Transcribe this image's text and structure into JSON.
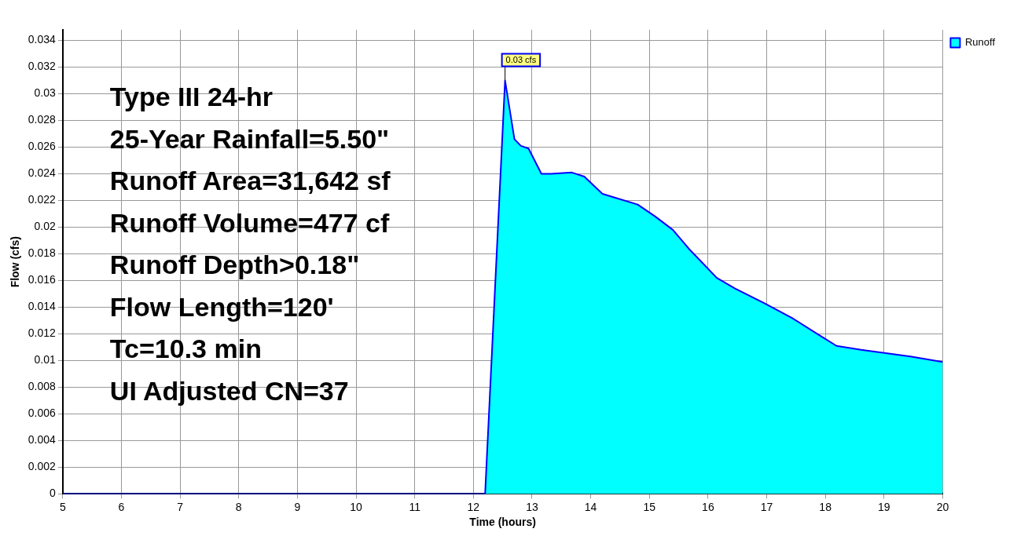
{
  "chart_data": {
    "type": "area",
    "xlabel": "Time (hours)",
    "ylabel": "Flow (cfs)",
    "x": [
      5,
      12.2,
      12.54,
      12.7,
      12.81,
      12.94,
      13.16,
      13.32,
      13.68,
      13.89,
      14.2,
      14.8,
      15.1,
      15.4,
      15.67,
      16.15,
      16.46,
      16.96,
      17.43,
      17.86,
      18.19,
      18.61,
      19.45,
      20.0
    ],
    "series": [
      {
        "name": "Runoff",
        "color": "#00ffff",
        "values": [
          0,
          0,
          0.031,
          0.0266,
          0.0261,
          0.0259,
          0.024,
          0.024,
          0.0241,
          0.0238,
          0.0225,
          0.0217,
          0.0208,
          0.0198,
          0.0184,
          0.0162,
          0.0154,
          0.0143,
          0.0132,
          0.012,
          0.0111,
          0.0108,
          0.0103,
          0.0099
        ]
      }
    ],
    "xlim": [
      5,
      20
    ],
    "xticks": [
      5,
      6,
      7,
      8,
      9,
      10,
      11,
      12,
      13,
      14,
      15,
      16,
      17,
      18,
      19,
      20
    ],
    "ylim": [
      0,
      0.0348
    ],
    "yticks": [
      0,
      0.002,
      0.004,
      0.006,
      0.008,
      0.01,
      0.012,
      0.014,
      0.016,
      0.018,
      0.02,
      0.022,
      0.024,
      0.026,
      0.028,
      0.03,
      0.032,
      0.034
    ],
    "grid": true,
    "legend": "top right",
    "annotations": [
      "Type III 24-hr",
      "25-Year Rainfall=5.50\"",
      "Runoff Area=31,642 sf",
      "Runoff Volume=477 cf",
      "Runoff Depth>0.18\"",
      "Flow Length=120'",
      "Tc=10.3 min",
      "UI Adjusted CN=37",
      {
        "text": "0.03 cfs",
        "x": 12.54,
        "y": 0.031
      }
    ]
  }
}
